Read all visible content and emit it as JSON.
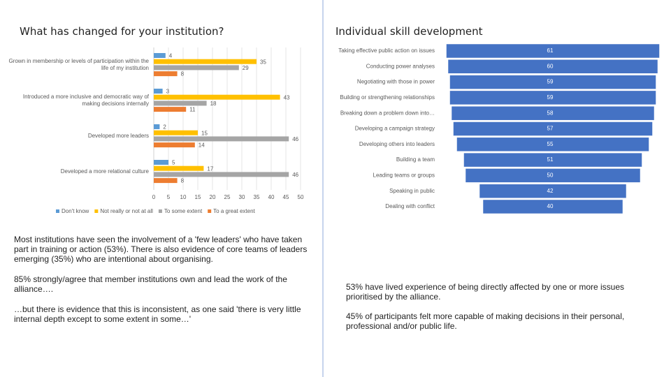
{
  "chart_data": [
    {
      "type": "grouped-hbar",
      "title": "What has changed for your institution?",
      "categories": [
        "Grown in membership or levels of participation within the life of my institution",
        "Introduced a more inclusive and democratic way of making decisions internally",
        "Developed more leaders",
        "Developed a more relational culture"
      ],
      "series": [
        {
          "name": "Don't know",
          "color": "#5b9bd5",
          "values": [
            4,
            3,
            2,
            5
          ]
        },
        {
          "name": "Not really or not at all",
          "color": "#ffc000",
          "values": [
            35,
            43,
            15,
            17
          ]
        },
        {
          "name": "To some extent",
          "color": "#a5a5a5",
          "values": [
            29,
            18,
            46,
            46
          ]
        },
        {
          "name": "To a great extent",
          "color": "#ed7d31",
          "values": [
            8,
            11,
            14,
            8
          ]
        }
      ],
      "xlim": [
        0,
        50
      ],
      "xticks": [
        0,
        5,
        10,
        15,
        20,
        25,
        30,
        35,
        40,
        45,
        50
      ],
      "grid": true,
      "legend": "bottom"
    },
    {
      "type": "funnel",
      "title": "Individual skill development",
      "color": "#4472c4",
      "categories": [
        "Taking effective public action on issues",
        "Conducting power analyses",
        "Negotiating with those in power",
        "Building or strengthening relationships",
        "Breaking down a problem down into…",
        "Developing a campaign strategy",
        "Developing others into leaders",
        "Building a team",
        "Leading teams or groups",
        "Speaking in public",
        "Dealing with conflict"
      ],
      "values": [
        61,
        60,
        59,
        59,
        58,
        57,
        55,
        51,
        50,
        42,
        40
      ]
    }
  ],
  "notes": {
    "left": [
      "Most institutions have seen the involvement of a 'few leaders' who have taken part in training or action (53%). There is also evidence of core teams of leaders emerging (35%) who are intentional about organising.",
      "85% strongly/agree that member institutions own and lead the work of the alliance….",
      "…but there is evidence that this is inconsistent, as one said 'there is very little internal depth except to some extent in some…'"
    ],
    "right": [
      "53% have lived experience of being directly affected by one or more issues prioritised by the alliance.",
      "45% of participants felt more capable of making decisions in their personal, professional and/or public life."
    ]
  }
}
